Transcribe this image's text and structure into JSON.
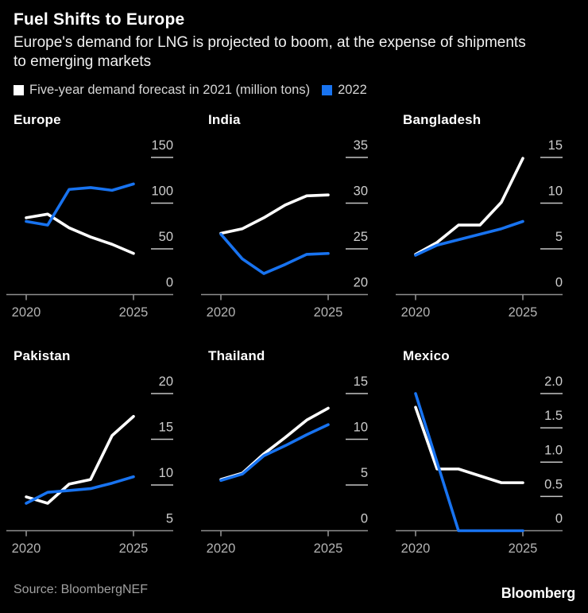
{
  "header": {
    "title": "Fuel Shifts to Europe",
    "subtitle": "Europe's demand for LNG is projected to boom, at the expense of shipments to emerging markets",
    "legend": [
      {
        "label": "Five-year demand forecast in 2021 (million tons)",
        "color": "#ffffff"
      },
      {
        "label": "2022",
        "color": "#1873f0"
      }
    ]
  },
  "colors": {
    "background": "#000000",
    "series_2021": "#ffffff",
    "series_2022": "#1873f0",
    "axis_line": "#8f8f8f",
    "grid_dash": "#c4c4c4",
    "y_tick_label": "#cdcdcd",
    "x_tick_label": "#b3b3b3"
  },
  "chart_data": [
    {
      "type": "line",
      "title": "Europe",
      "x": [
        2020,
        2021,
        2022,
        2023,
        2024,
        2025
      ],
      "x_tick_labels": [
        "2020",
        "2025"
      ],
      "ylim": [
        0,
        150
      ],
      "y_ticks": [
        {
          "label": "150",
          "value": 150
        },
        {
          "label": "100",
          "value": 100
        },
        {
          "label": "50",
          "value": 50
        },
        {
          "label": "0",
          "value": 0
        }
      ],
      "series": [
        {
          "name": "Five-year demand forecast in 2021",
          "color": "#ffffff",
          "values": [
            84,
            88,
            73,
            63,
            55,
            45
          ]
        },
        {
          "name": "2022",
          "color": "#1873f0",
          "values": [
            80,
            76,
            115,
            117,
            114,
            121
          ]
        }
      ]
    },
    {
      "type": "line",
      "title": "India",
      "x": [
        2020,
        2021,
        2022,
        2023,
        2024,
        2025
      ],
      "x_tick_labels": [
        "2020",
        "2025"
      ],
      "ylim": [
        20,
        35
      ],
      "y_ticks": [
        {
          "label": "35",
          "value": 35
        },
        {
          "label": "30",
          "value": 30
        },
        {
          "label": "25",
          "value": 25
        },
        {
          "label": "20",
          "value": 20
        }
      ],
      "series": [
        {
          "name": "Five-year demand forecast in 2021",
          "color": "#ffffff",
          "values": [
            26.7,
            27.2,
            28.4,
            29.8,
            30.8,
            30.9
          ]
        },
        {
          "name": "2022",
          "color": "#1873f0",
          "values": [
            26.6,
            23.9,
            22.3,
            23.3,
            24.4,
            24.5
          ]
        }
      ]
    },
    {
      "type": "line",
      "title": "Bangladesh",
      "x": [
        2020,
        2021,
        2022,
        2023,
        2024,
        2025
      ],
      "x_tick_labels": [
        "2020",
        "2025"
      ],
      "ylim": [
        0,
        15
      ],
      "y_ticks": [
        {
          "label": "15",
          "value": 15
        },
        {
          "label": "10",
          "value": 10
        },
        {
          "label": "5",
          "value": 5
        },
        {
          "label": "0",
          "value": 0
        }
      ],
      "series": [
        {
          "name": "Five-year demand forecast in 2021",
          "color": "#ffffff",
          "values": [
            4.4,
            5.7,
            7.6,
            7.6,
            10.1,
            14.9
          ]
        },
        {
          "name": "2022",
          "color": "#1873f0",
          "values": [
            4.3,
            5.4,
            6.0,
            6.6,
            7.2,
            8.0
          ]
        }
      ]
    },
    {
      "type": "line",
      "title": "Pakistan",
      "x": [
        2020,
        2021,
        2022,
        2023,
        2024,
        2025
      ],
      "x_tick_labels": [
        "2020",
        "2025"
      ],
      "ylim": [
        5,
        20
      ],
      "y_ticks": [
        {
          "label": "20",
          "value": 20
        },
        {
          "label": "15",
          "value": 15
        },
        {
          "label": "10",
          "value": 10
        },
        {
          "label": "5",
          "value": 5
        }
      ],
      "series": [
        {
          "name": "Five-year demand forecast in 2021",
          "color": "#ffffff",
          "values": [
            8.7,
            8.0,
            10.1,
            10.6,
            15.4,
            17.5
          ]
        },
        {
          "name": "2022",
          "color": "#1873f0",
          "values": [
            8.0,
            9.2,
            9.4,
            9.6,
            10.2,
            10.9
          ]
        }
      ]
    },
    {
      "type": "line",
      "title": "Thailand",
      "x": [
        2020,
        2021,
        2022,
        2023,
        2024,
        2025
      ],
      "x_tick_labels": [
        "2020",
        "2025"
      ],
      "ylim": [
        0,
        15
      ],
      "y_ticks": [
        {
          "label": "15",
          "value": 15
        },
        {
          "label": "10",
          "value": 10
        },
        {
          "label": "5",
          "value": 5
        },
        {
          "label": "0",
          "value": 0
        }
      ],
      "series": [
        {
          "name": "Five-year demand forecast in 2021",
          "color": "#ffffff",
          "values": [
            5.6,
            6.3,
            8.4,
            10.2,
            12.1,
            13.4
          ]
        },
        {
          "name": "2022",
          "color": "#1873f0",
          "values": [
            5.5,
            6.2,
            8.2,
            9.3,
            10.5,
            11.6
          ]
        }
      ]
    },
    {
      "type": "line",
      "title": "Mexico",
      "x": [
        2020,
        2021,
        2022,
        2023,
        2024,
        2025
      ],
      "x_tick_labels": [
        "2020",
        "2025"
      ],
      "ylim": [
        0,
        2
      ],
      "y_ticks": [
        {
          "label": "2.0",
          "value": 2.0
        },
        {
          "label": "1.5",
          "value": 1.5
        },
        {
          "label": "1.0",
          "value": 1.0
        },
        {
          "label": "0.5",
          "value": 0.5
        },
        {
          "label": "0",
          "value": 0
        }
      ],
      "series": [
        {
          "name": "Five-year demand forecast in 2021",
          "color": "#ffffff",
          "values": [
            1.8,
            0.9,
            0.9,
            0.8,
            0.7,
            0.7
          ]
        },
        {
          "name": "2022",
          "color": "#1873f0",
          "values": [
            2.0,
            1.0,
            0.0,
            0.0,
            0.0,
            0.0
          ]
        }
      ]
    }
  ],
  "footer": {
    "source": "Source: BloombergNEF",
    "logo": "Bloomberg"
  }
}
